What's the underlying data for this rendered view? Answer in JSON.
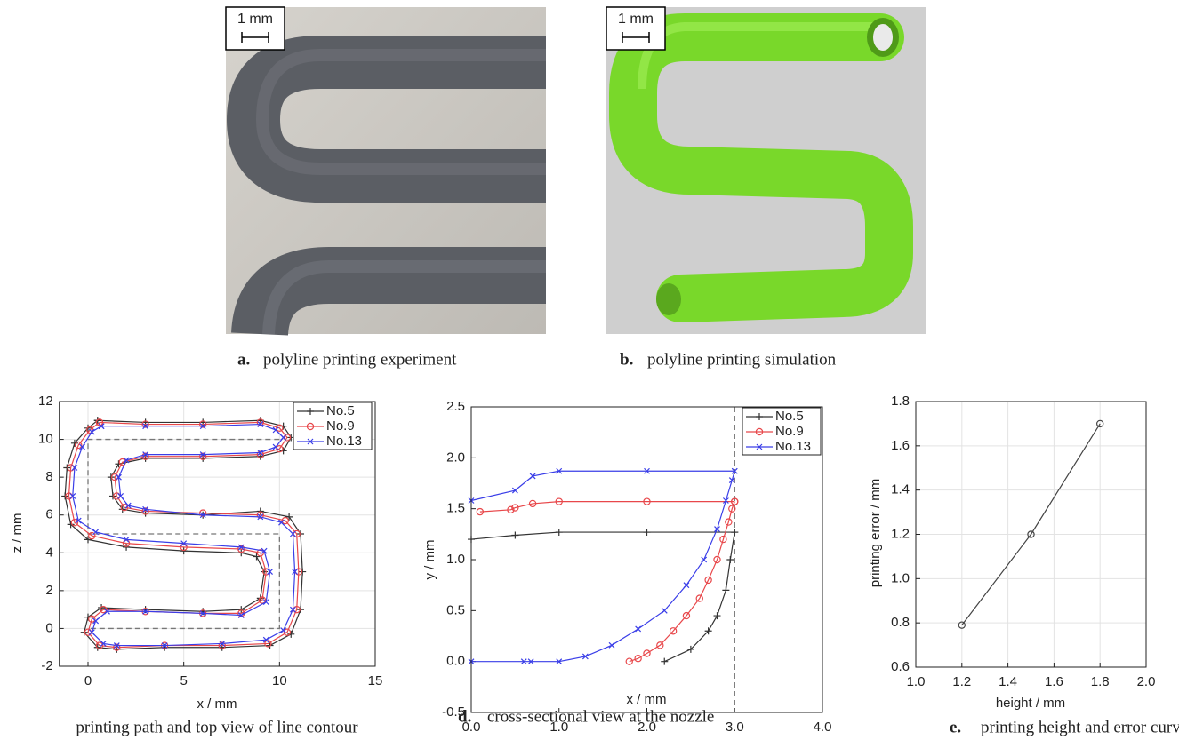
{
  "panels": [
    {
      "label": "a.",
      "caption": "polyline printing experiment",
      "scale_bar": "1 mm"
    },
    {
      "label": "b.",
      "caption": "polyline printing simulation",
      "scale_bar": "1 mm"
    }
  ],
  "chart_data": [
    {
      "type": "line",
      "caption": "printing path and top view of line contour",
      "x_label": "x / mm",
      "y_label": "z / mm",
      "xlim": [
        -1.5,
        15
      ],
      "xticks": [
        0,
        5,
        10,
        15
      ],
      "ylim": [
        -2,
        12
      ],
      "yticks": [
        -2,
        0,
        2,
        4,
        6,
        8,
        10,
        12
      ],
      "grid": true,
      "legend": "upper right",
      "center_path": {
        "color": "#777777",
        "x": [
          10,
          0,
          0,
          10,
          10,
          0
        ],
        "y": [
          10,
          10,
          5,
          5,
          0,
          0
        ]
      },
      "series": [
        {
          "name": "No.5",
          "color": "#333333",
          "marker": "plus",
          "x": [
            0.5,
            3,
            6,
            9,
            10.2,
            10.6,
            10.2,
            9,
            6,
            3,
            1.6,
            1.2,
            1.3,
            1.8,
            3,
            6,
            9,
            10.5,
            11.1,
            11.2,
            11.1,
            10.6,
            9.5,
            7,
            4,
            1.5,
            0.5,
            -0.2,
            0,
            0.7,
            3,
            6,
            8,
            9,
            9.2,
            8.8,
            8,
            5,
            2,
            0,
            -0.9,
            -1.2,
            -1.1,
            -0.7,
            0,
            0.5
          ],
          "y": [
            11.0,
            10.9,
            10.9,
            11.0,
            10.7,
            10.1,
            9.4,
            9.1,
            9.0,
            9.0,
            8.7,
            8.0,
            7.0,
            6.3,
            6.1,
            6.0,
            6.2,
            5.9,
            5.0,
            3.0,
            1.0,
            -0.3,
            -0.9,
            -1.0,
            -1.0,
            -1.1,
            -1.0,
            -0.2,
            0.6,
            1.1,
            1.0,
            0.9,
            1.0,
            1.6,
            3.0,
            3.8,
            4.0,
            4.1,
            4.3,
            4.7,
            5.5,
            7,
            8.5,
            9.8,
            10.6,
            11.0
          ]
        },
        {
          "name": "No.9",
          "color": "#e8474a",
          "marker": "circle",
          "x": [
            0.6,
            3,
            6,
            9,
            10.0,
            10.4,
            10.0,
            9,
            6,
            3,
            1.8,
            1.4,
            1.5,
            1.9,
            3,
            6,
            9,
            10.3,
            10.9,
            11.0,
            10.9,
            10.4,
            9.4,
            7,
            4,
            1.5,
            0.6,
            0,
            0.2,
            0.8,
            3,
            6,
            8,
            9.1,
            9.3,
            9.0,
            8,
            5,
            2,
            0.2,
            -0.7,
            -1.0,
            -0.9,
            -0.5,
            0.1,
            0.6
          ],
          "y": [
            10.9,
            10.8,
            10.8,
            10.9,
            10.6,
            10.1,
            9.5,
            9.2,
            9.1,
            9.1,
            8.8,
            8.0,
            7.0,
            6.4,
            6.2,
            6.1,
            6.0,
            5.7,
            5.0,
            3.0,
            1.0,
            -0.2,
            -0.8,
            -0.9,
            -0.9,
            -1.0,
            -0.9,
            -0.2,
            0.5,
            1.0,
            0.9,
            0.8,
            0.8,
            1.5,
            3.0,
            4.0,
            4.2,
            4.3,
            4.5,
            4.9,
            5.6,
            7,
            8.5,
            9.7,
            10.5,
            10.9
          ]
        },
        {
          "name": "No.13",
          "color": "#3a3ee8",
          "marker": "x",
          "x": [
            0.7,
            3,
            6,
            9,
            9.8,
            10.2,
            9.8,
            9,
            6,
            3,
            2.0,
            1.6,
            1.7,
            2.1,
            3,
            6,
            9,
            10.1,
            10.7,
            10.8,
            10.7,
            10.2,
            9.3,
            7,
            4,
            1.5,
            0.8,
            0.2,
            0.4,
            1.0,
            3,
            6,
            8,
            9.3,
            9.5,
            9.2,
            8,
            5,
            2,
            0.4,
            -0.5,
            -0.8,
            -0.7,
            -0.3,
            0.2,
            0.7
          ],
          "y": [
            10.7,
            10.7,
            10.7,
            10.8,
            10.5,
            10.1,
            9.6,
            9.3,
            9.2,
            9.2,
            8.9,
            8.0,
            7.0,
            6.5,
            6.3,
            6.0,
            5.9,
            5.6,
            5.0,
            3.0,
            1.0,
            -0.1,
            -0.6,
            -0.8,
            -0.9,
            -0.9,
            -0.8,
            -0.2,
            0.4,
            0.9,
            0.9,
            0.8,
            0.7,
            1.4,
            3.0,
            4.1,
            4.3,
            4.5,
            4.7,
            5.1,
            5.7,
            7,
            8.5,
            9.6,
            10.4,
            10.7
          ]
        }
      ]
    },
    {
      "type": "line",
      "caption_label": "d.",
      "caption": "cross-sectional view at the nozzle",
      "x_label": "x / mm",
      "y_label": "y / mm",
      "xlim": [
        0,
        4
      ],
      "xticks": [
        {
          "value": 0,
          "label": "0.0"
        },
        {
          "value": 1,
          "label": "1.0"
        },
        {
          "value": 2,
          "label": "2.0"
        },
        {
          "value": 3,
          "label": "3.0"
        },
        {
          "value": 4,
          "label": "4.0"
        }
      ],
      "ylim": [
        -0.5,
        2.5
      ],
      "yticks": [
        -0.5,
        {
          "value": 0,
          "label": "0.0"
        },
        0.5,
        {
          "value": 1,
          "label": "1.0"
        },
        1.5,
        {
          "value": 2,
          "label": "2.0"
        },
        2.5
      ],
      "grid": false,
      "legend": "upper right",
      "vline": 3,
      "series": [
        {
          "name": "No.5",
          "color": "#333333",
          "marker": "plus",
          "x": [
            0,
            0.5,
            1,
            2,
            3,
            null,
            2.2,
            2.5,
            2.7,
            2.8,
            2.9,
            2.95,
            3.0
          ],
          "y": [
            1.2,
            1.24,
            1.27,
            1.27,
            1.27,
            null,
            0,
            0.12,
            0.3,
            0.45,
            0.7,
            1.0,
            1.27
          ]
        },
        {
          "name": "No.9",
          "color": "#e8474a",
          "marker": "circle",
          "x": [
            0.1,
            0.45,
            0.5,
            0.7,
            1.0,
            2.0,
            3.0,
            null,
            1.8,
            1.9,
            2.0,
            2.15,
            2.3,
            2.45,
            2.6,
            2.7,
            2.8,
            2.87,
            2.93,
            2.97,
            3.0
          ],
          "y": [
            1.47,
            1.49,
            1.51,
            1.55,
            1.57,
            1.57,
            1.57,
            null,
            0,
            0.03,
            0.08,
            0.16,
            0.3,
            0.45,
            0.62,
            0.8,
            1.0,
            1.2,
            1.37,
            1.5,
            1.57
          ]
        },
        {
          "name": "No.13",
          "color": "#3a3ee8",
          "marker": "x",
          "x": [
            0,
            0.5,
            0.7,
            1.0,
            2.0,
            3.0,
            null,
            0,
            0.6,
            0.68,
            1.0,
            1.3,
            1.6,
            1.9,
            2.2,
            2.45,
            2.65,
            2.8,
            2.9,
            2.97,
            3.0
          ],
          "y": [
            1.58,
            1.68,
            1.82,
            1.87,
            1.87,
            1.87,
            null,
            0,
            0,
            0,
            0,
            0.05,
            0.16,
            0.32,
            0.5,
            0.75,
            1.0,
            1.3,
            1.58,
            1.78,
            1.87
          ]
        }
      ]
    },
    {
      "type": "line",
      "caption_label": "e.",
      "caption": "printing height and error curve",
      "x_label": "height / mm",
      "y_label": "printing error / mm",
      "xlim": [
        1,
        2
      ],
      "xticks": [
        {
          "value": 1,
          "label": "1.0"
        },
        1.2,
        1.4,
        1.6,
        1.8,
        {
          "value": 2,
          "label": "2.0"
        }
      ],
      "ylim": [
        0.6,
        1.8
      ],
      "yticks": [
        0.6,
        0.8,
        {
          "value": 1,
          "label": "1.0"
        },
        1.2,
        1.4,
        1.6,
        1.8
      ],
      "grid": true,
      "series": [
        {
          "color": "#444444",
          "marker": "circle",
          "x": [
            1.2,
            1.5,
            1.8
          ],
          "y": [
            0.79,
            1.2,
            1.7
          ]
        }
      ]
    }
  ]
}
